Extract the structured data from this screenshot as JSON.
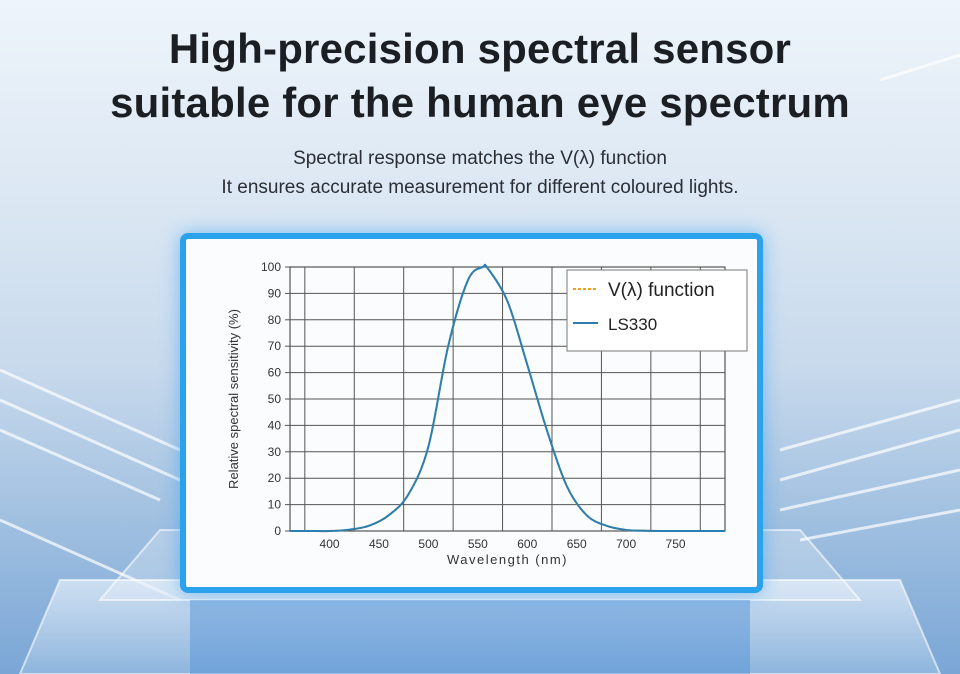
{
  "header": {
    "title_line1": "High-precision spectral sensor",
    "title_line2": "suitable for the human eye spectrum",
    "subtitle_line1": "Spectral response matches the V(λ) function",
    "subtitle_line2": "It ensures accurate measurement for different coloured lights."
  },
  "colors": {
    "frame": "#2aa2ec",
    "ls330": "#2a7fb0",
    "vlambda": "#f0a020",
    "grid": "#555555"
  },
  "chart_data": {
    "type": "line",
    "xlabel": "Wavelength (nm)",
    "ylabel": "Relative spectral sensitivity (%)",
    "xlim": [
      360,
      800
    ],
    "ylim": [
      0,
      100
    ],
    "x_ticks": [
      400,
      450,
      500,
      550,
      600,
      650,
      700,
      750
    ],
    "y_ticks": [
      0,
      10,
      20,
      30,
      40,
      50,
      60,
      70,
      80,
      90,
      100
    ],
    "grid": true,
    "legend_position": "top-right",
    "series": [
      {
        "name": "V(λ) function",
        "style": "dashed",
        "x": [
          360,
          380,
          400,
          420,
          440,
          460,
          480,
          500,
          520,
          540,
          555,
          560,
          580,
          600,
          620,
          640,
          660,
          680,
          700,
          720,
          740,
          760,
          800
        ],
        "y": [
          0,
          0,
          0,
          0.5,
          2,
          6,
          14,
          32,
          70,
          95,
          100,
          99.5,
          87,
          63,
          38,
          17,
          6,
          2,
          0.4,
          0.1,
          0,
          0,
          0
        ]
      },
      {
        "name": "LS330",
        "style": "solid",
        "x": [
          360,
          380,
          400,
          420,
          440,
          460,
          480,
          500,
          520,
          540,
          555,
          560,
          580,
          600,
          620,
          640,
          660,
          680,
          700,
          720,
          740,
          760,
          800
        ],
        "y": [
          0,
          0,
          0,
          0.5,
          2,
          6,
          14,
          32,
          70,
          95,
          100,
          99.5,
          87,
          63,
          38,
          17,
          6,
          2,
          0.4,
          0.1,
          0,
          0,
          0
        ]
      }
    ]
  }
}
